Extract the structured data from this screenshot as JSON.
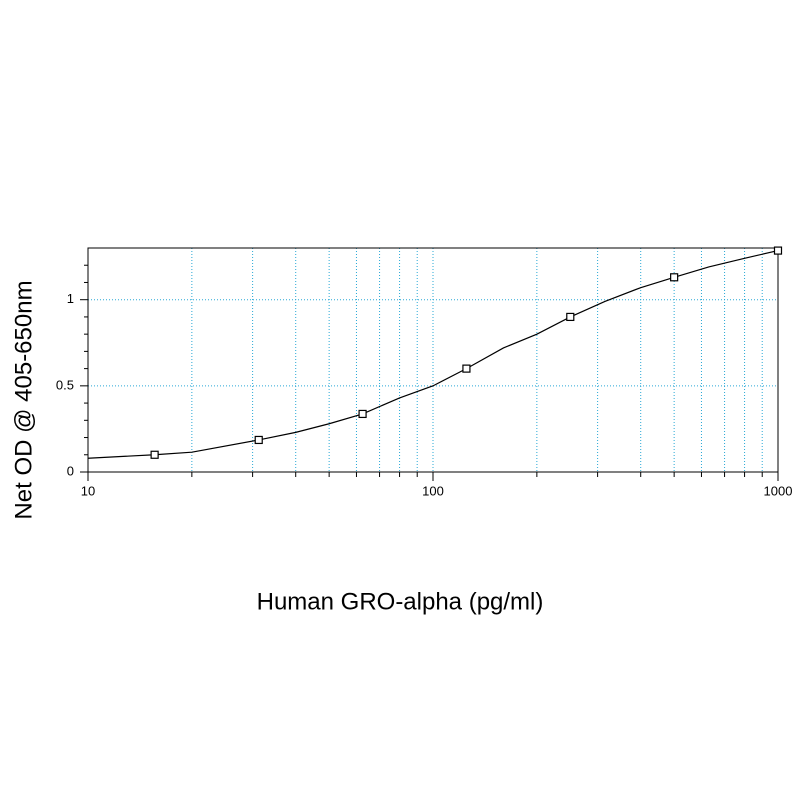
{
  "chart_data": {
    "type": "scatter",
    "x_label": "Human GRO-alpha (pg/ml)",
    "y_label": "Net OD @ 405-650nm",
    "xscale": "log",
    "xlim": [
      10,
      1000
    ],
    "xticks": [
      10,
      100,
      1000
    ],
    "xminorticks": [
      20,
      30,
      40,
      50,
      60,
      70,
      80,
      90,
      200,
      300,
      400,
      500,
      600,
      700,
      800,
      900
    ],
    "ylim": [
      0,
      1.3
    ],
    "yticks": [
      0,
      0.5,
      1
    ],
    "yminorticks": [
      0.1,
      0.2,
      0.3,
      0.4,
      0.6,
      0.7,
      0.8,
      0.9,
      1.1,
      1.2
    ],
    "grid": true,
    "grid_color": "#29a8d6",
    "series": [
      {
        "style": "markers",
        "color": "#000000",
        "x": [
          15.6,
          31.25,
          62.5,
          125,
          250,
          500,
          1000
        ],
        "values": [
          0.1,
          0.186,
          0.337,
          0.6,
          0.9,
          1.13,
          1.285
        ]
      },
      {
        "style": "line",
        "color": "#000000",
        "x": [
          10,
          15.6,
          20,
          31.25,
          40,
          50,
          62.5,
          80,
          100,
          125,
          160,
          200,
          250,
          315,
          400,
          500,
          630,
          800,
          1000
        ],
        "values": [
          0.08,
          0.1,
          0.115,
          0.186,
          0.23,
          0.28,
          0.337,
          0.43,
          0.5,
          0.6,
          0.72,
          0.8,
          0.9,
          0.99,
          1.07,
          1.13,
          1.19,
          1.24,
          1.285
        ]
      }
    ]
  }
}
